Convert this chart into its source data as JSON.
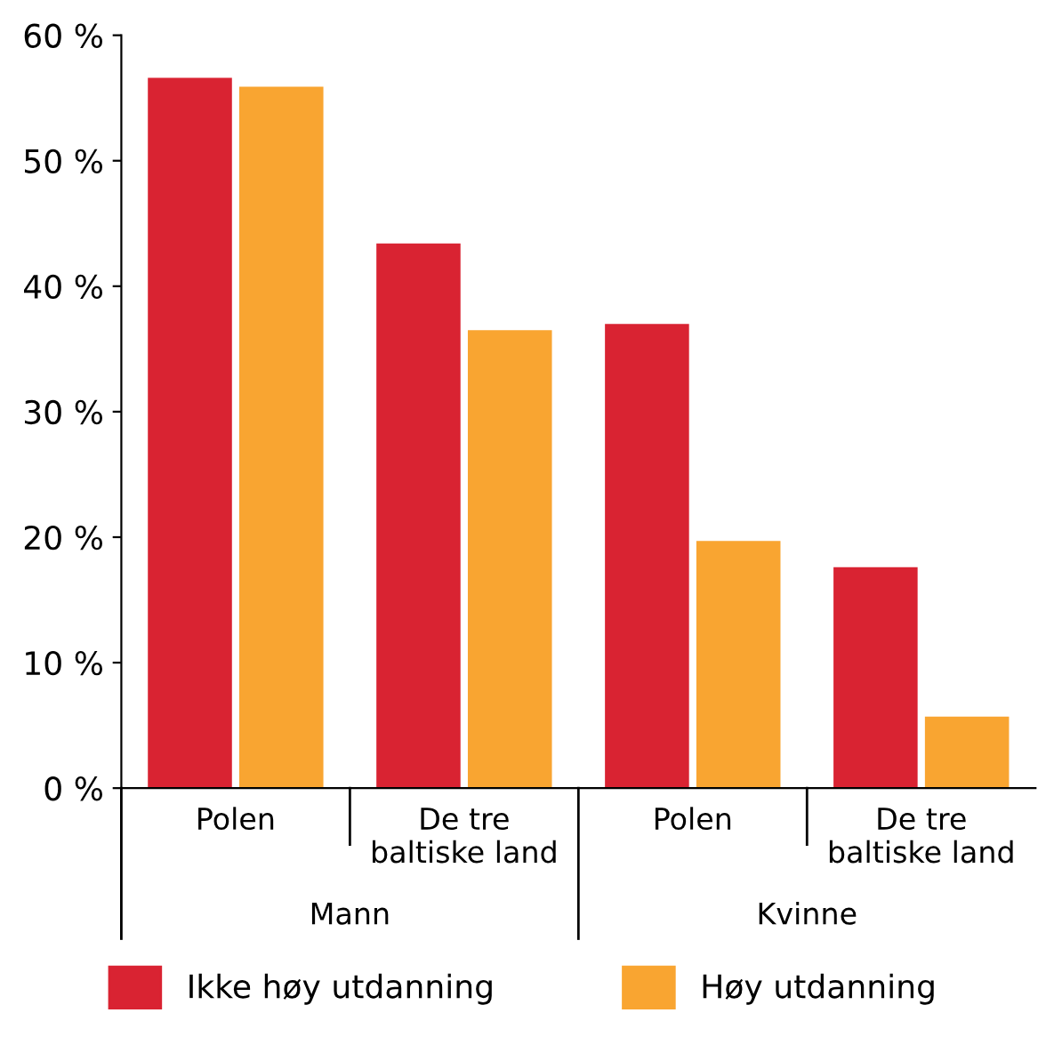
{
  "chart_data": {
    "type": "bar",
    "categories": [
      "Polen",
      "De tre\nbaltiske land",
      "Polen",
      "De tre\nbaltiske land"
    ],
    "series": [
      {
        "name": "Ikke høy utdanning",
        "color": "#d92332",
        "values": [
          56.6,
          43.4,
          37.0,
          17.6
        ]
      },
      {
        "name": "Høy utdanning",
        "color": "#f9a531",
        "values": [
          55.9,
          36.5,
          19.7,
          5.7
        ]
      }
    ],
    "annotations": [
      "Mann",
      "Kvinne"
    ],
    "ylim": [
      0,
      60
    ],
    "yticks": [
      {
        "value": 0,
        "label": "0 %"
      },
      {
        "value": 10,
        "label": "10 %"
      },
      {
        "value": 20,
        "label": "20 %"
      },
      {
        "value": 30,
        "label": "30 %"
      },
      {
        "value": 40,
        "label": "40 %"
      },
      {
        "value": 50,
        "label": "50 %"
      },
      {
        "value": 60,
        "label": "60 %"
      }
    ],
    "grid": false,
    "legend": "bottom"
  }
}
